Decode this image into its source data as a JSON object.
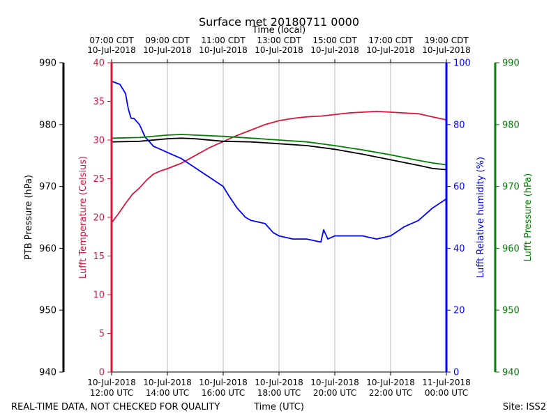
{
  "chart_data": {
    "type": "line",
    "title": "Surface met 20180711 0000",
    "top_axis_label": "Time (local)",
    "xlabel": "Time (UTC)",
    "footer_left": "REAL-TIME DATA, NOT CHECKED FOR QUALITY",
    "footer_right": "Site: ISS2",
    "x_range_hours": [
      0,
      12
    ],
    "x_ticks": [
      {
        "hour": 0,
        "utc_date": "10-Jul-2018",
        "utc_time": "12:00 UTC",
        "local_time": "07:00 CDT",
        "local_date": "10-Jul-2018"
      },
      {
        "hour": 2,
        "utc_date": "10-Jul-2018",
        "utc_time": "14:00 UTC",
        "local_time": "09:00 CDT",
        "local_date": "10-Jul-2018"
      },
      {
        "hour": 4,
        "utc_date": "10-Jul-2018",
        "utc_time": "16:00 UTC",
        "local_time": "11:00 CDT",
        "local_date": "10-Jul-2018"
      },
      {
        "hour": 6,
        "utc_date": "10-Jul-2018",
        "utc_time": "18:00 UTC",
        "local_time": "13:00 CDT",
        "local_date": "10-Jul-2018"
      },
      {
        "hour": 8,
        "utc_date": "10-Jul-2018",
        "utc_time": "20:00 UTC",
        "local_time": "15:00 CDT",
        "local_date": "10-Jul-2018"
      },
      {
        "hour": 10,
        "utc_date": "10-Jul-2018",
        "utc_time": "22:00 UTC",
        "local_time": "17:00 CDT",
        "local_date": "10-Jul-2018"
      },
      {
        "hour": 12,
        "utc_date": "11-Jul-2018",
        "utc_time": "00:00 UTC",
        "local_time": "19:00 CDT",
        "local_date": "10-Jul-2018"
      }
    ],
    "axes": {
      "ptb_pressure": {
        "label": "PTB Pressure (hPa)",
        "ylim": [
          940,
          990
        ],
        "ticks": [
          940,
          950,
          960,
          970,
          980,
          990
        ],
        "color": "#000000"
      },
      "temperature": {
        "label": "Lufft Temperature (Celsius)",
        "ylim": [
          0,
          40
        ],
        "ticks": [
          0,
          5,
          10,
          15,
          20,
          25,
          30,
          35,
          40
        ],
        "color": "#dc143c"
      },
      "humidity": {
        "label": "Lufft Relative humidity (%)",
        "ylim": [
          0,
          100
        ],
        "ticks": [
          0,
          20,
          40,
          60,
          80,
          100
        ],
        "color": "#0000ff"
      },
      "lufft_pressure": {
        "label": "Lufft Pressure (hPa)",
        "ylim": [
          940,
          990
        ],
        "ticks": [
          940,
          950,
          960,
          970,
          980,
          990
        ],
        "color": "#008000"
      }
    },
    "series": [
      {
        "name": "Lufft Temperature",
        "axis": "temperature",
        "color": "#dc143c",
        "x": [
          0,
          0.25,
          0.5,
          0.75,
          1.0,
          1.25,
          1.5,
          1.75,
          2.0,
          2.5,
          3.0,
          3.5,
          4.0,
          4.5,
          5.0,
          5.5,
          6.0,
          6.5,
          7.0,
          7.5,
          8.0,
          8.5,
          9.0,
          9.5,
          10.0,
          10.5,
          11.0,
          11.5,
          12.0
        ],
        "values": [
          19.3,
          20.5,
          21.8,
          23.0,
          23.8,
          24.8,
          25.6,
          26.0,
          26.3,
          27.0,
          28.0,
          29.0,
          29.8,
          30.6,
          31.3,
          32.0,
          32.5,
          32.8,
          33.0,
          33.1,
          33.3,
          33.5,
          33.6,
          33.7,
          33.6,
          33.5,
          33.4,
          33.0,
          32.6
        ]
      },
      {
        "name": "Lufft Relative humidity",
        "axis": "humidity",
        "color": "#0000ff",
        "x": [
          0,
          0.3,
          0.5,
          0.6,
          0.7,
          0.8,
          1.0,
          1.2,
          1.3,
          1.5,
          1.75,
          2.0,
          2.5,
          3.0,
          3.5,
          4.0,
          4.2,
          4.5,
          4.8,
          5.0,
          5.5,
          5.8,
          6.0,
          6.5,
          7.0,
          7.5,
          7.6,
          7.75,
          8.0,
          8.5,
          9.0,
          9.5,
          10.0,
          10.5,
          11.0,
          11.5,
          12.0
        ],
        "values": [
          94,
          93,
          90,
          85,
          82,
          82,
          80,
          76,
          75,
          73,
          72,
          71,
          69,
          66,
          63,
          60,
          57,
          53,
          50,
          49,
          48,
          45,
          44,
          43,
          43,
          42,
          46,
          43,
          44,
          44,
          44,
          43,
          44,
          47,
          49,
          53,
          56
        ]
      },
      {
        "name": "PTB Pressure",
        "axis": "ptb_pressure",
        "color": "#000000",
        "x": [
          0,
          1.0,
          2.0,
          2.5,
          3.0,
          4.0,
          5.0,
          6.0,
          7.0,
          8.0,
          9.0,
          10.0,
          11.0,
          11.5,
          12.0
        ],
        "values": [
          977.2,
          977.3,
          977.7,
          977.8,
          977.7,
          977.3,
          977.2,
          976.9,
          976.6,
          976.0,
          975.2,
          974.3,
          973.4,
          972.9,
          972.7
        ]
      },
      {
        "name": "Lufft Pressure",
        "axis": "lufft_pressure",
        "color": "#008000",
        "x": [
          0,
          1.0,
          2.0,
          2.5,
          3.0,
          4.0,
          5.0,
          6.0,
          7.0,
          8.0,
          9.0,
          10.0,
          11.0,
          11.5,
          12.0
        ],
        "values": [
          977.8,
          977.9,
          978.3,
          978.4,
          978.3,
          978.1,
          977.8,
          977.5,
          977.2,
          976.6,
          975.9,
          975.1,
          974.2,
          973.8,
          973.5
        ]
      }
    ],
    "grid": true
  }
}
